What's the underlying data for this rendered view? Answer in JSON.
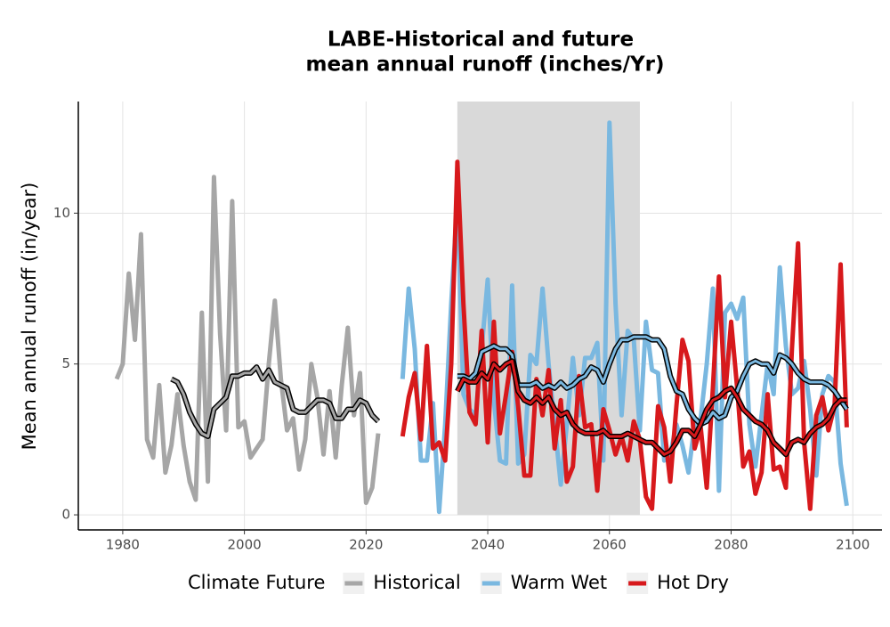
{
  "chart_data": {
    "type": "line",
    "title": [
      "LABE-Historical and future",
      "mean annual runoff (inches/Yr)"
    ],
    "y_label": "Mean annual runoff (in/year)",
    "legend_title": "Climate Future",
    "legend_position": "bottom",
    "grid": true,
    "shaded_range": [
      2035,
      2065
    ],
    "xlim": [
      1972.7,
      2104.8
    ],
    "ylim": [
      -0.5,
      13.7
    ],
    "xticks": [
      1980,
      2000,
      2020,
      2040,
      2060,
      2080,
      2100
    ],
    "yticks": [
      0,
      5,
      10
    ],
    "series": [
      {
        "name": "Historical",
        "color": "#a6a6a6",
        "x": [
          1979,
          1980,
          1981,
          1982,
          1983,
          1984,
          1985,
          1986,
          1987,
          1988,
          1989,
          1990,
          1991,
          1992,
          1993,
          1994,
          1995,
          1996,
          1997,
          1998,
          1999,
          2000,
          2001,
          2002,
          2003,
          2004,
          2005,
          2006,
          2007,
          2008,
          2009,
          2010,
          2011,
          2012,
          2013,
          2014,
          2015,
          2016,
          2017,
          2018,
          2019,
          2020,
          2021,
          2022
        ],
        "values": [
          4.5,
          5.0,
          8.0,
          5.8,
          9.3,
          2.5,
          1.9,
          4.3,
          1.4,
          2.3,
          4.0,
          2.3,
          1.1,
          0.5,
          6.7,
          1.1,
          11.2,
          6.0,
          2.8,
          10.4,
          2.9,
          3.1,
          1.9,
          2.2,
          2.5,
          5.0,
          7.1,
          4.5,
          2.8,
          3.2,
          1.5,
          2.5,
          5.0,
          3.9,
          2.0,
          4.1,
          1.9,
          4.3,
          6.2,
          3.3,
          4.7,
          0.4,
          0.9,
          2.7
        ],
        "trend_x": [
          1988,
          1989,
          1990,
          1991,
          1992,
          1993,
          1994,
          1995,
          1996,
          1997,
          1998,
          1999,
          2000,
          2001,
          2002,
          2003,
          2004,
          2005,
          2006,
          2007,
          2008,
          2009,
          2010,
          2011,
          2012,
          2013,
          2014,
          2015,
          2016,
          2017,
          2018,
          2019,
          2020,
          2021,
          2022
        ],
        "trend_values": [
          4.5,
          4.4,
          4.0,
          3.4,
          3.0,
          2.7,
          2.6,
          3.5,
          3.7,
          3.9,
          4.6,
          4.6,
          4.7,
          4.7,
          4.9,
          4.5,
          4.8,
          4.4,
          4.3,
          4.2,
          3.5,
          3.4,
          3.4,
          3.6,
          3.8,
          3.8,
          3.7,
          3.2,
          3.2,
          3.5,
          3.5,
          3.8,
          3.7,
          3.3,
          3.1
        ]
      },
      {
        "name": "Warm Wet",
        "color": "#7ab8e0",
        "x": [
          2026,
          2027,
          2028,
          2029,
          2030,
          2031,
          2032,
          2033,
          2034,
          2035,
          2036,
          2037,
          2038,
          2039,
          2040,
          2041,
          2042,
          2043,
          2044,
          2045,
          2046,
          2047,
          2048,
          2049,
          2050,
          2051,
          2052,
          2053,
          2054,
          2055,
          2056,
          2057,
          2058,
          2059,
          2060,
          2061,
          2062,
          2063,
          2064,
          2065,
          2066,
          2067,
          2068,
          2069,
          2070,
          2071,
          2072,
          2073,
          2074,
          2075,
          2076,
          2077,
          2078,
          2079,
          2080,
          2081,
          2082,
          2083,
          2084,
          2085,
          2086,
          2087,
          2088,
          2089,
          2090,
          2091,
          2092,
          2093,
          2094,
          2095,
          2096,
          2097,
          2098,
          2099
        ],
        "values": [
          4.5,
          7.5,
          5.5,
          1.8,
          1.8,
          3.7,
          0.1,
          3.0,
          7.0,
          10.5,
          4.0,
          3.5,
          3.3,
          5.5,
          7.8,
          3.8,
          1.8,
          1.7,
          7.6,
          1.7,
          2.0,
          5.3,
          5.0,
          7.5,
          5.0,
          3.0,
          1.0,
          3.0,
          5.2,
          3.3,
          5.2,
          5.2,
          5.7,
          1.8,
          13.0,
          7.0,
          3.3,
          6.1,
          5.8,
          2.8,
          6.4,
          4.8,
          4.7,
          1.8,
          2.0,
          3.0,
          2.3,
          1.4,
          3.0,
          3.2,
          5.0,
          7.5,
          0.8,
          6.7,
          7.0,
          6.5,
          7.2,
          3.0,
          1.6,
          3.3,
          5.0,
          4.0,
          8.2,
          5.6,
          4.0,
          4.2,
          5.1,
          3.5,
          1.3,
          4.0,
          4.6,
          4.4,
          1.7,
          0.3
        ],
        "trend_x": [
          2035,
          2036,
          2037,
          2038,
          2039,
          2040,
          2041,
          2042,
          2043,
          2044,
          2045,
          2046,
          2047,
          2048,
          2049,
          2050,
          2051,
          2052,
          2053,
          2054,
          2055,
          2056,
          2057,
          2058,
          2059,
          2060,
          2061,
          2062,
          2063,
          2064,
          2065,
          2066,
          2067,
          2068,
          2069,
          2070,
          2071,
          2072,
          2073,
          2074,
          2075,
          2076,
          2077,
          2078,
          2079,
          2080,
          2081,
          2082,
          2083,
          2084,
          2085,
          2086,
          2087,
          2088,
          2089,
          2090,
          2091,
          2092,
          2093,
          2094,
          2095,
          2096,
          2097,
          2098,
          2099
        ],
        "trend_values": [
          4.6,
          4.6,
          4.5,
          4.7,
          5.4,
          5.5,
          5.6,
          5.5,
          5.5,
          5.3,
          4.3,
          4.3,
          4.3,
          4.4,
          4.2,
          4.3,
          4.2,
          4.4,
          4.2,
          4.3,
          4.5,
          4.6,
          4.9,
          4.8,
          4.4,
          5.0,
          5.5,
          5.8,
          5.8,
          5.9,
          5.9,
          5.9,
          5.8,
          5.8,
          5.5,
          4.6,
          4.1,
          4.0,
          3.5,
          3.2,
          3.0,
          3.1,
          3.4,
          3.2,
          3.3,
          3.9,
          4.1,
          4.6,
          5.0,
          5.1,
          5.0,
          5.0,
          4.7,
          5.3,
          5.2,
          5.0,
          4.7,
          4.5,
          4.4,
          4.4,
          4.4,
          4.3,
          4.1,
          3.8,
          3.5
        ]
      },
      {
        "name": "Hot Dry",
        "color": "#d7191c",
        "x": [
          2026,
          2027,
          2028,
          2029,
          2030,
          2031,
          2032,
          2033,
          2034,
          2035,
          2036,
          2037,
          2038,
          2039,
          2040,
          2041,
          2042,
          2043,
          2044,
          2045,
          2046,
          2047,
          2048,
          2049,
          2050,
          2051,
          2052,
          2053,
          2054,
          2055,
          2056,
          2057,
          2058,
          2059,
          2060,
          2061,
          2062,
          2063,
          2064,
          2065,
          2066,
          2067,
          2068,
          2069,
          2070,
          2071,
          2072,
          2073,
          2074,
          2075,
          2076,
          2077,
          2078,
          2079,
          2080,
          2081,
          2082,
          2083,
          2084,
          2085,
          2086,
          2087,
          2088,
          2089,
          2090,
          2091,
          2092,
          2093,
          2094,
          2095,
          2096,
          2097,
          2098,
          2099
        ],
        "values": [
          2.6,
          3.9,
          4.7,
          2.5,
          5.6,
          2.2,
          2.4,
          1.8,
          5.0,
          11.7,
          7.0,
          3.4,
          3.0,
          6.1,
          2.4,
          6.4,
          2.7,
          4.0,
          5.4,
          3.6,
          1.3,
          1.3,
          4.5,
          3.3,
          4.8,
          2.2,
          3.8,
          1.1,
          1.6,
          4.6,
          2.9,
          3.0,
          0.8,
          3.5,
          2.8,
          2.0,
          2.6,
          1.8,
          3.1,
          2.5,
          0.6,
          0.2,
          3.6,
          2.9,
          1.1,
          3.6,
          5.8,
          5.1,
          2.2,
          2.9,
          0.9,
          4.2,
          7.9,
          3.9,
          6.4,
          4.2,
          1.6,
          2.1,
          0.7,
          1.4,
          4.0,
          1.5,
          1.6,
          0.9,
          5.5,
          9.0,
          2.4,
          0.2,
          3.3,
          3.9,
          2.8,
          3.6,
          8.3,
          2.9
        ],
        "trend_x": [
          2035,
          2036,
          2037,
          2038,
          2039,
          2040,
          2041,
          2042,
          2043,
          2044,
          2045,
          2046,
          2047,
          2048,
          2049,
          2050,
          2051,
          2052,
          2053,
          2054,
          2055,
          2056,
          2057,
          2058,
          2059,
          2060,
          2061,
          2062,
          2063,
          2064,
          2065,
          2066,
          2067,
          2068,
          2069,
          2070,
          2071,
          2072,
          2073,
          2074,
          2075,
          2076,
          2077,
          2078,
          2079,
          2080,
          2081,
          2082,
          2083,
          2084,
          2085,
          2086,
          2087,
          2088,
          2089,
          2090,
          2091,
          2092,
          2093,
          2094,
          2095,
          2096,
          2097,
          2098,
          2099
        ],
        "trend_values": [
          4.1,
          4.5,
          4.4,
          4.4,
          4.7,
          4.5,
          5.0,
          4.8,
          5.0,
          5.1,
          4.1,
          3.8,
          3.7,
          3.9,
          3.7,
          3.9,
          3.5,
          3.3,
          3.4,
          3.0,
          2.8,
          2.7,
          2.7,
          2.7,
          2.8,
          2.6,
          2.6,
          2.6,
          2.7,
          2.6,
          2.5,
          2.4,
          2.4,
          2.2,
          2.0,
          2.1,
          2.4,
          2.8,
          2.8,
          2.6,
          3.0,
          3.5,
          3.8,
          3.9,
          4.1,
          4.2,
          3.9,
          3.5,
          3.3,
          3.1,
          3.0,
          2.8,
          2.4,
          2.2,
          2.0,
          2.4,
          2.5,
          2.4,
          2.7,
          2.9,
          3.0,
          3.2,
          3.6,
          3.8,
          3.8
        ]
      }
    ]
  }
}
